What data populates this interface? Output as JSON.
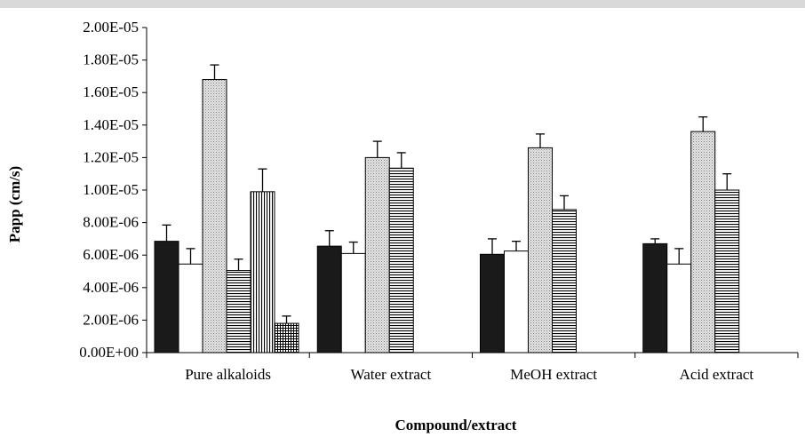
{
  "chart_data": {
    "type": "bar",
    "title": "",
    "xlabel": "Compound/extract",
    "ylabel": "Papp (cm/s)",
    "ylim": [
      0,
      2e-05
    ],
    "yticks": [
      "0.00E+00",
      "2.00E-06",
      "4.00E-06",
      "6.00E-06",
      "8.00E-06",
      "1.00E-05",
      "1.20E-05",
      "1.40E-05",
      "1.60E-05",
      "1.80E-05",
      "2.00E-05"
    ],
    "grid": false,
    "legend": "none",
    "categories": [
      "Pure alkaloids",
      "Water extract",
      "MeOH extract",
      "Acid extract"
    ],
    "groups": [
      {
        "category": "Pure alkaloids",
        "bars": [
          {
            "pattern": "solid-black",
            "value": 6.85e-06,
            "error": 1e-06
          },
          {
            "pattern": "white",
            "value": 5.45e-06,
            "error": 9.5e-07
          },
          {
            "pattern": "dots",
            "value": 1.68e-05,
            "error": 9e-07
          },
          {
            "pattern": "horizontal-lines",
            "value": 5.05e-06,
            "error": 7e-07
          },
          {
            "pattern": "vertical-lines",
            "value": 9.9e-06,
            "error": 1.4e-06
          },
          {
            "pattern": "grid",
            "value": 1.8e-06,
            "error": 4.5e-07
          }
        ]
      },
      {
        "category": "Water extract",
        "bars": [
          {
            "pattern": "solid-black",
            "value": 6.55e-06,
            "error": 9.5e-07
          },
          {
            "pattern": "white",
            "value": 6.1e-06,
            "error": 7e-07
          },
          {
            "pattern": "dots",
            "value": 1.2e-05,
            "error": 1e-06
          },
          {
            "pattern": "horizontal-lines",
            "value": 1.135e-05,
            "error": 9.5e-07
          }
        ]
      },
      {
        "category": "MeOH extract",
        "bars": [
          {
            "pattern": "solid-black",
            "value": 6.05e-06,
            "error": 9.5e-07
          },
          {
            "pattern": "white",
            "value": 6.25e-06,
            "error": 6e-07
          },
          {
            "pattern": "dots",
            "value": 1.26e-05,
            "error": 8.5e-07
          },
          {
            "pattern": "horizontal-lines",
            "value": 8.8e-06,
            "error": 8.5e-07
          }
        ]
      },
      {
        "category": "Acid extract",
        "bars": [
          {
            "pattern": "solid-black",
            "value": 6.7e-06,
            "error": 3e-07
          },
          {
            "pattern": "white",
            "value": 5.45e-06,
            "error": 9.5e-07
          },
          {
            "pattern": "dots",
            "value": 1.36e-05,
            "error": 9e-07
          },
          {
            "pattern": "horizontal-lines",
            "value": 1e-05,
            "error": 1e-06
          }
        ]
      }
    ]
  }
}
